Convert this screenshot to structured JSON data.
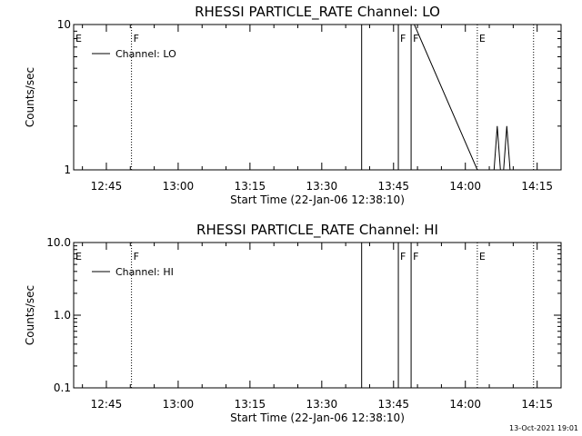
{
  "chart_data": [
    {
      "type": "line",
      "title": "RHESSI PARTICLE_RATE Channel: LO",
      "xlabel": "Start Time (22-Jan-06 12:38:10)",
      "ylabel": "Counts/sec",
      "y_scale": "log",
      "ylim": [
        1,
        10
      ],
      "y_ticks": [
        {
          "value": 1,
          "label": "1"
        },
        {
          "value": 10,
          "label": "10"
        }
      ],
      "xlim": [
        "12:38:10",
        "14:20:00"
      ],
      "x_ticks": [
        {
          "value": "12:45",
          "label": "12:45"
        },
        {
          "value": "13:00",
          "label": "13:00"
        },
        {
          "value": "13:15",
          "label": "13:15"
        },
        {
          "value": "13:30",
          "label": "13:30"
        },
        {
          "value": "13:45",
          "label": "13:45"
        },
        {
          "value": "14:00",
          "label": "14:00"
        },
        {
          "value": "14:15",
          "label": "14:15"
        }
      ],
      "legend": {
        "position": "top-left",
        "entries": [
          "Channel: LO"
        ]
      },
      "flags": [
        {
          "label": "E",
          "time": "12:38:10",
          "style": "none"
        },
        {
          "label": "F",
          "time": "12:50:15",
          "style": "dotted"
        },
        {
          "label": "",
          "time": "13:38:20",
          "style": "solid"
        },
        {
          "label": "F",
          "time": "13:46:00",
          "style": "solid"
        },
        {
          "label": "F",
          "time": "13:48:40",
          "style": "solid"
        },
        {
          "label": "E",
          "time": "14:02:30",
          "style": "dotted"
        },
        {
          "label": "",
          "time": "14:14:15",
          "style": "dotted"
        }
      ],
      "series": [
        {
          "name": "Channel: LO",
          "x": [
            "13:38:20",
            "13:45:20",
            "13:46:00",
            "13:46:40",
            "13:48:00",
            "13:48:40",
            "13:49:20",
            "14:02:30",
            "14:06:00",
            "14:06:40",
            "14:07:20",
            "14:08:00",
            "14:08:40",
            "14:09:20",
            "14:10:00"
          ],
          "y": [
            10,
            10,
            10,
            10,
            10,
            10,
            10,
            1,
            1,
            2,
            1,
            1,
            2,
            1,
            1
          ]
        }
      ]
    },
    {
      "type": "line",
      "title": "RHESSI PARTICLE_RATE Channel: HI",
      "xlabel": "Start Time (22-Jan-06 12:38:10)",
      "ylabel": "Counts/sec",
      "y_scale": "log",
      "ylim": [
        0.1,
        10
      ],
      "y_ticks": [
        {
          "value": 0.1,
          "label": "0.1"
        },
        {
          "value": 1,
          "label": "1.0"
        },
        {
          "value": 10,
          "label": "10.0"
        }
      ],
      "xlim": [
        "12:38:10",
        "14:20:00"
      ],
      "x_ticks": [
        {
          "value": "12:45",
          "label": "12:45"
        },
        {
          "value": "13:00",
          "label": "13:00"
        },
        {
          "value": "13:15",
          "label": "13:15"
        },
        {
          "value": "13:30",
          "label": "13:30"
        },
        {
          "value": "13:45",
          "label": "13:45"
        },
        {
          "value": "14:00",
          "label": "14:00"
        },
        {
          "value": "14:15",
          "label": "14:15"
        }
      ],
      "legend": {
        "position": "top-left",
        "entries": [
          "Channel: HI"
        ]
      },
      "flags": [
        {
          "label": "E",
          "time": "12:38:10",
          "style": "none"
        },
        {
          "label": "F",
          "time": "12:50:15",
          "style": "dotted"
        },
        {
          "label": "",
          "time": "13:38:20",
          "style": "solid"
        },
        {
          "label": "F",
          "time": "13:46:00",
          "style": "solid"
        },
        {
          "label": "F",
          "time": "13:48:40",
          "style": "solid"
        },
        {
          "label": "E",
          "time": "14:02:30",
          "style": "dotted"
        },
        {
          "label": "",
          "time": "14:14:15",
          "style": "dotted"
        }
      ],
      "series": [
        {
          "name": "Channel: HI",
          "x": [
            "13:38:20",
            "13:45:20",
            "13:46:00",
            "13:46:40",
            "13:48:00",
            "13:48:40",
            "13:49:20"
          ],
          "y": [
            10,
            10,
            10,
            10,
            10,
            10,
            10
          ]
        }
      ]
    }
  ],
  "timestamp": "13-Oct-2021 19:01"
}
